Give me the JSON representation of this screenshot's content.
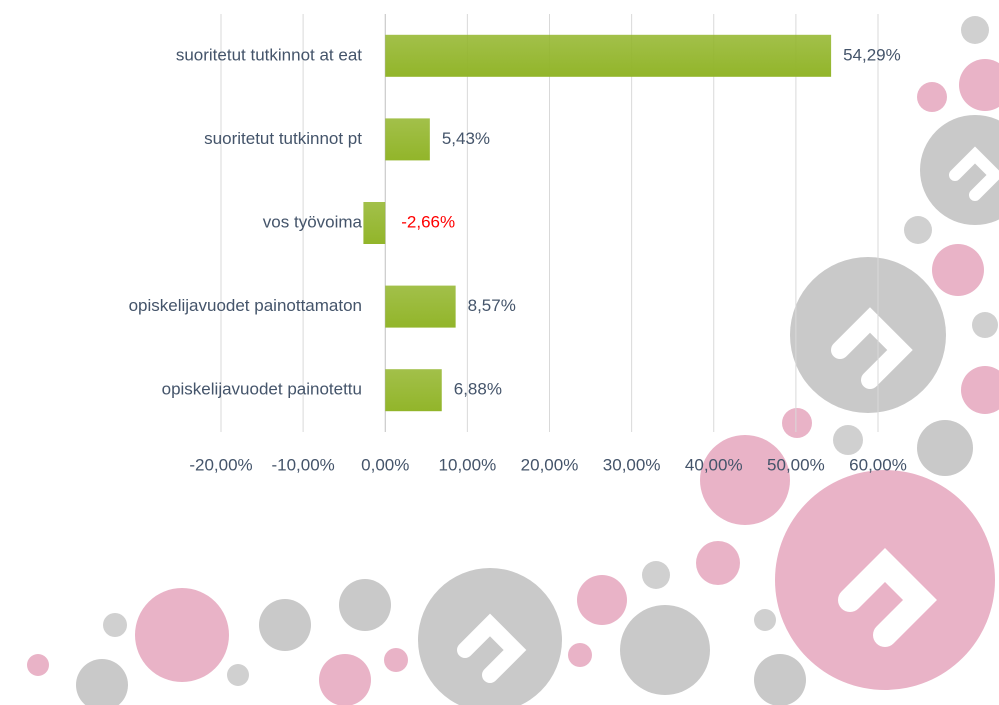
{
  "chart_data": {
    "type": "bar",
    "orientation": "horizontal",
    "categories": [
      "suoritetut tutkinnot at eat",
      "suoritetut tutkinnot pt",
      "vos työvoima",
      "opiskelijavuodet painottamaton",
      "opiskelijavuodet painotettu"
    ],
    "values": [
      54.29,
      5.43,
      -2.66,
      8.57,
      6.88
    ],
    "value_labels": [
      "54,29%",
      "5,43%",
      "-2,66%",
      "8,57%",
      "6,88%"
    ],
    "color": "#92b52a",
    "negative_label_color": "#ff0000",
    "xlim": [
      -20,
      60
    ],
    "xticks": [
      {
        "value": -20,
        "label": "-20,00%"
      },
      {
        "value": -10,
        "label": "-10,00%"
      },
      {
        "value": 0,
        "label": "0,00%"
      },
      {
        "value": 10,
        "label": "10,00%"
      },
      {
        "value": 20,
        "label": "20,00%"
      },
      {
        "value": 30,
        "label": "30,00%"
      },
      {
        "value": 40,
        "label": "40,00%"
      },
      {
        "value": 50,
        "label": "50,00%"
      },
      {
        "value": 60,
        "label": "60,00%"
      }
    ],
    "grid": true
  }
}
